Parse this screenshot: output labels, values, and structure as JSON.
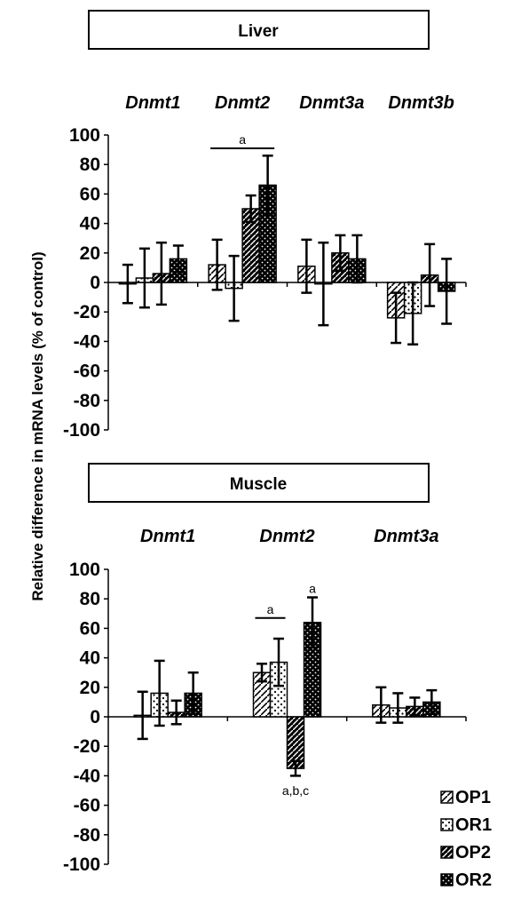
{
  "legend": [
    {
      "name": "OP1",
      "pattern": "pat-op1"
    },
    {
      "name": "OR1",
      "pattern": "pat-or1"
    },
    {
      "name": "OP2",
      "pattern": "pat-op2"
    },
    {
      "name": "OR2",
      "pattern": "pat-or2"
    }
  ],
  "ylabel": "Relative difference in mRNA levels (% of control)",
  "chart_data": [
    {
      "type": "bar",
      "title": "Liver",
      "ylabel": "Relative difference in mRNA levels (% of control)",
      "ylim": [
        -100,
        100
      ],
      "yticks": [
        100,
        80,
        60,
        40,
        20,
        0,
        -20,
        -40,
        -60,
        -80,
        -100
      ],
      "categories": [
        "Dnmt1",
        "Dnmt2",
        "Dnmt3a",
        "Dnmt3b"
      ],
      "series": [
        {
          "name": "OP1",
          "values": [
            -1,
            12,
            11,
            -24
          ],
          "errors": [
            13,
            17,
            18,
            17
          ]
        },
        {
          "name": "OR1",
          "values": [
            3,
            -4,
            -1,
            -21
          ],
          "errors": [
            20,
            22,
            28,
            21
          ]
        },
        {
          "name": "OP2",
          "values": [
            6,
            50,
            20,
            5
          ],
          "errors": [
            21,
            9,
            12,
            21
          ]
        },
        {
          "name": "OR2",
          "values": [
            16,
            66,
            16,
            -6
          ],
          "errors": [
            9,
            20,
            16,
            22
          ]
        }
      ],
      "annotations": [
        {
          "text": "a",
          "category": "Dnmt2",
          "from_series": 0,
          "to_series": 3,
          "y": 91
        }
      ]
    },
    {
      "type": "bar",
      "title": "Muscle",
      "ylabel": "Relative difference in mRNA levels (% of control)",
      "ylim": [
        -100,
        100
      ],
      "yticks": [
        100,
        80,
        60,
        40,
        20,
        0,
        -20,
        -40,
        -60,
        -80,
        -100
      ],
      "categories": [
        "Dnmt1",
        "Dnmt2",
        "Dnmt3a"
      ],
      "series": [
        {
          "name": "OP1",
          "values": [
            1,
            30,
            8
          ],
          "errors": [
            16,
            6,
            12
          ]
        },
        {
          "name": "OR1",
          "values": [
            16,
            37,
            6
          ],
          "errors": [
            22,
            16,
            10
          ]
        },
        {
          "name": "OP2",
          "values": [
            3,
            -35,
            7
          ],
          "errors": [
            8,
            5,
            6
          ]
        },
        {
          "name": "OR2",
          "values": [
            16,
            64,
            10
          ],
          "errors": [
            14,
            17,
            8
          ]
        }
      ],
      "annotations": [
        {
          "text": "a",
          "category": "Dnmt2",
          "from_series": 0,
          "to_series": 1,
          "y": 67
        },
        {
          "text": "a",
          "category": "Dnmt2",
          "series": 3,
          "y": 87
        },
        {
          "text": "a,b,c",
          "category": "Dnmt2",
          "series": 2,
          "y": -50
        }
      ]
    }
  ]
}
